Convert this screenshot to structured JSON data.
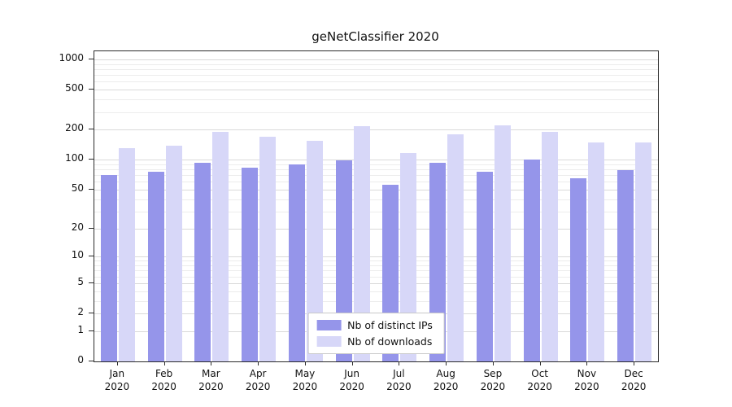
{
  "chart_data": {
    "type": "bar",
    "title": "geNetClassifier 2020",
    "categories": [
      "Jan 2020",
      "Feb 2020",
      "Mar 2020",
      "Apr 2020",
      "May 2020",
      "Jun 2020",
      "Jul 2020",
      "Aug 2020",
      "Sep 2020",
      "Oct 2020",
      "Nov 2020",
      "Dec 2020"
    ],
    "series": [
      {
        "name": "Nb of distinct IPs",
        "color": "#9595ea",
        "values": [
          70,
          75,
          93,
          83,
          89,
          99,
          56,
          93,
          76,
          100,
          65,
          78
        ]
      },
      {
        "name": "Nb of downloads",
        "color": "#d7d7f8",
        "values": [
          131,
          139,
          190,
          170,
          155,
          216,
          117,
          180,
          220,
          190,
          148,
          150
        ]
      }
    ],
    "yscale": "log1p",
    "yticks": [
      0,
      1,
      2,
      5,
      10,
      20,
      50,
      100,
      200,
      500,
      1000
    ],
    "ylim": [
      0,
      1000
    ],
    "grid": true,
    "legend_position": "bottom-center-inside"
  }
}
